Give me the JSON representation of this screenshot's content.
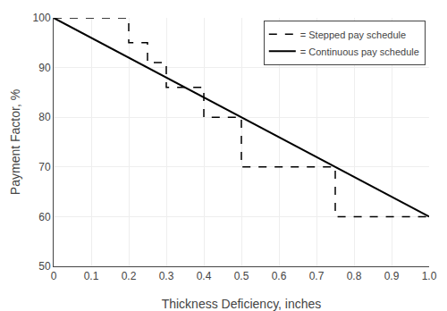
{
  "chart_data": {
    "type": "line",
    "xlabel": "Thickness Deficiency, inches",
    "ylabel": "Payment Factor, %",
    "xlim": [
      0,
      1.0
    ],
    "ylim": [
      50,
      100
    ],
    "xticks": [
      0,
      0.1,
      0.2,
      0.3,
      0.4,
      0.5,
      0.6,
      0.7,
      0.8,
      0.9,
      {
        "value": 1.0,
        "label": "1.0"
      }
    ],
    "yticks": [
      50,
      60,
      70,
      80,
      90,
      100
    ],
    "grid": true,
    "legend": "upper right",
    "series": [
      {
        "name": "= Continuous pay schedule",
        "color": "#000000",
        "line_style": "solid",
        "x": [
          0.0,
          1.0
        ],
        "values": [
          100,
          60
        ]
      },
      {
        "name": "= Stepped pay schedule",
        "color": "#000000",
        "line_style": "dashed",
        "x": [
          0.0,
          0.2,
          0.2,
          0.25,
          0.25,
          0.3,
          0.3,
          0.4,
          0.4,
          0.5,
          0.5,
          0.75,
          0.75,
          1.0
        ],
        "values": [
          100,
          100,
          95,
          95,
          91,
          91,
          86,
          86,
          80,
          80,
          70,
          70,
          60,
          60
        ]
      }
    ]
  }
}
